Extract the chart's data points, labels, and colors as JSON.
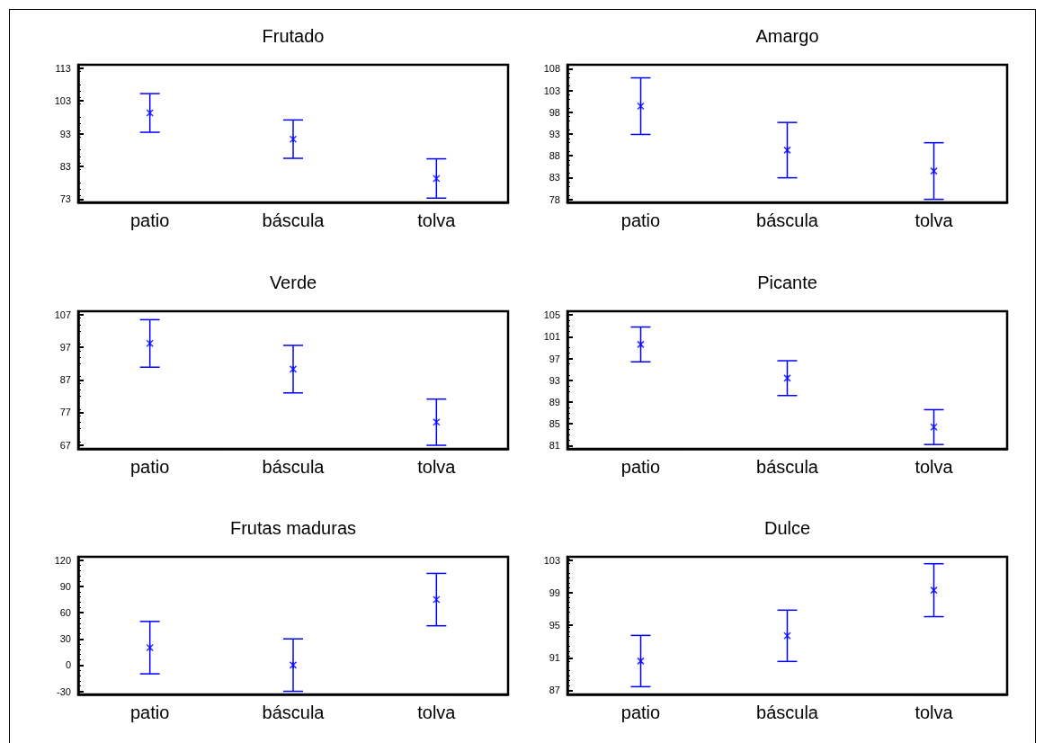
{
  "chart_data": [
    {
      "type": "scatter",
      "title": "Frutado",
      "categories": [
        "patio",
        "báscula",
        "tolva"
      ],
      "values": [
        99.3,
        91.3,
        79.3
      ],
      "errors": [
        5.9,
        5.85,
        6.0
      ],
      "color": "#0000ff",
      "marker": "cross",
      "ylim": [
        72,
        114
      ],
      "yticks": [
        73,
        83,
        93,
        103,
        113
      ]
    },
    {
      "type": "scatter",
      "title": "Amargo",
      "categories": [
        "patio",
        "báscula",
        "tolva"
      ],
      "values": [
        99.4,
        89.3,
        84.5
      ],
      "errors": [
        6.5,
        6.35,
        6.5
      ],
      "color": "#0000ff",
      "marker": "cross",
      "ylim": [
        77.3,
        108.9
      ],
      "yticks": [
        78,
        83,
        88,
        93,
        98,
        103,
        108
      ]
    },
    {
      "type": "scatter",
      "title": "Verde",
      "categories": [
        "patio",
        "báscula",
        "tolva"
      ],
      "values": [
        98.2,
        90.3,
        74.0
      ],
      "errors": [
        7.3,
        7.3,
        7.1
      ],
      "color": "#0000ff",
      "marker": "cross",
      "ylim": [
        65.8,
        108.1
      ],
      "yticks": [
        67,
        77,
        87,
        97,
        107
      ]
    },
    {
      "type": "scatter",
      "title": "Picante",
      "categories": [
        "patio",
        "báscula",
        "tolva"
      ],
      "values": [
        99.6,
        93.4,
        84.4
      ],
      "errors": [
        3.2,
        3.2,
        3.2
      ],
      "color": "#0000ff",
      "marker": "cross",
      "ylim": [
        80.4,
        105.7
      ],
      "yticks": [
        81,
        85,
        89,
        93,
        97,
        101,
        105
      ]
    },
    {
      "type": "scatter",
      "title": "Frutas maduras",
      "categories": [
        "patio",
        "báscula",
        "tolva"
      ],
      "values": [
        20,
        0,
        75
      ],
      "errors": [
        30,
        30,
        30
      ],
      "color": "#0000ff",
      "marker": "cross",
      "ylim": [
        -33.6,
        124
      ],
      "yticks": [
        -30,
        0,
        30,
        60,
        90,
        120
      ]
    },
    {
      "type": "scatter",
      "title": "Dulce",
      "categories": [
        "patio",
        "báscula",
        "tolva"
      ],
      "values": [
        90.6,
        93.7,
        99.3
      ],
      "errors": [
        3.15,
        3.15,
        3.25
      ],
      "color": "#0000ff",
      "marker": "cross",
      "ylim": [
        86.5,
        103.4
      ],
      "yticks": [
        87,
        91,
        95,
        99,
        103
      ]
    }
  ]
}
